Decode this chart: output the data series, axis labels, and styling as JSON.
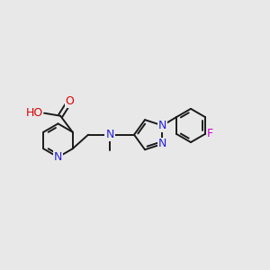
{
  "background_color": "#e8e8e8",
  "bond_color": "#1a1a1a",
  "bond_width": 1.4,
  "atom_colors": {
    "C": "#1a1a1a",
    "N": "#2222dd",
    "O": "#dd0000",
    "F": "#cc00cc",
    "H": "#444444"
  },
  "font_size": 9.0,
  "fig_width": 3.0,
  "fig_height": 3.0,
  "dpi": 100
}
